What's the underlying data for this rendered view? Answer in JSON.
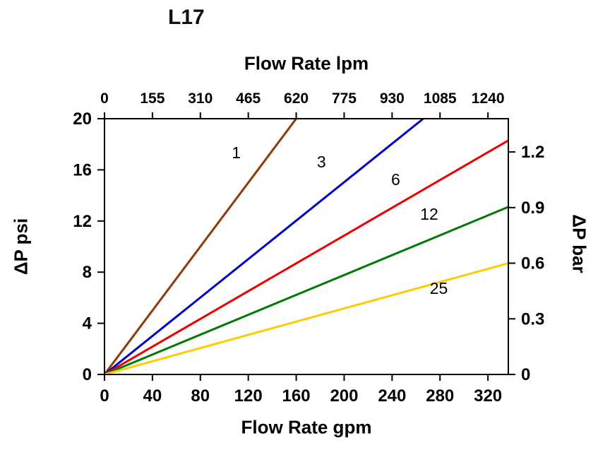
{
  "chart_data": {
    "type": "line",
    "title": "L17",
    "grid": false,
    "x_bottom": {
      "label": "Flow Rate gpm",
      "ticks": [
        0,
        40,
        80,
        120,
        160,
        200,
        240,
        280,
        320
      ],
      "range": [
        0,
        337
      ]
    },
    "x_top": {
      "label": "Flow Rate lpm",
      "ticks": [
        0,
        155,
        310,
        465,
        620,
        775,
        930,
        1085,
        1240
      ],
      "lpm_per_gpm": 3.875
    },
    "y_left": {
      "label": "ΔP psi",
      "ticks": [
        0,
        4,
        8,
        12,
        16,
        20
      ],
      "range": [
        0,
        20
      ]
    },
    "y_right": {
      "label": "ΔP bar",
      "ticks": [
        0,
        0.3,
        0.6,
        0.9,
        1.2
      ],
      "psi_per_bar": 14.5
    },
    "series": [
      {
        "name": "1",
        "color": "#8B3A08",
        "points": [
          [
            0,
            0
          ],
          [
            160,
            20
          ]
        ],
        "label_pos": [
          110,
          16.9
        ]
      },
      {
        "name": "3",
        "color": "#0000CC",
        "points": [
          [
            0,
            0
          ],
          [
            266,
            20
          ]
        ],
        "label_pos": [
          181,
          16.2
        ]
      },
      {
        "name": "6",
        "color": "#EE0000",
        "points": [
          [
            0,
            0
          ],
          [
            337,
            18.3
          ]
        ],
        "label_pos": [
          243,
          14.8
        ]
      },
      {
        "name": "12",
        "color": "#007A00",
        "points": [
          [
            0,
            0
          ],
          [
            337,
            13.1
          ]
        ],
        "label_pos": [
          271,
          12.1
        ]
      },
      {
        "name": "25",
        "color": "#FFCC00",
        "points": [
          [
            0,
            0
          ],
          [
            337,
            8.7
          ]
        ],
        "label_pos": [
          279,
          6.3
        ]
      }
    ]
  }
}
